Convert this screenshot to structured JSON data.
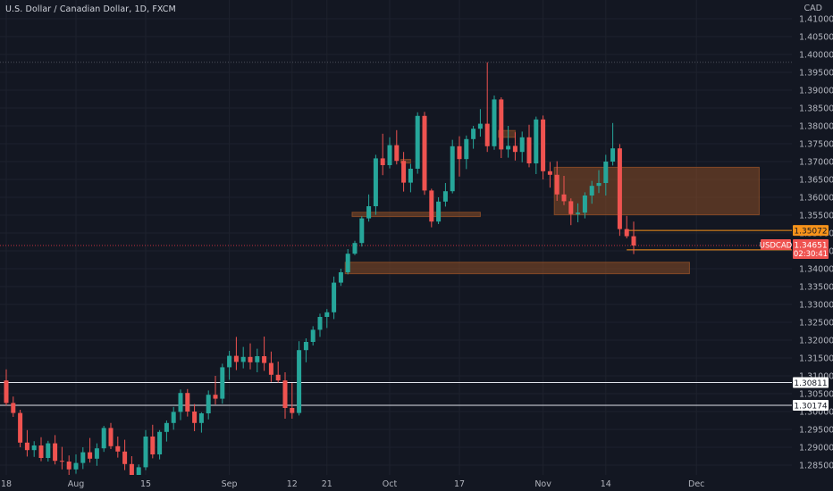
{
  "header": {
    "title": "U.S. Dollar / Canadian Dollar, 1D, FXCM",
    "currency": "CAD"
  },
  "colors": {
    "background": "#131722",
    "grid": "#1e222d",
    "up": "#26a69a",
    "down": "#ef5350",
    "zone": "#8b4c27",
    "orange_tag": "#f7931a",
    "white_line": "#e0e3eb"
  },
  "chart_data": {
    "type": "candlestick",
    "symbol": "USDCAD",
    "interval": "1D",
    "ylim": [
      1.2825,
      1.4125
    ],
    "y_ticks": [
      "1.41000",
      "1.40500",
      "1.40000",
      "1.39500",
      "1.39000",
      "1.38500",
      "1.38000",
      "1.37500",
      "1.37000",
      "1.36500",
      "1.36000",
      "1.35500",
      "1.35000",
      "1.34500",
      "1.34000",
      "1.33500",
      "1.33000",
      "1.32500",
      "1.32000",
      "1.31500",
      "1.31000",
      "1.30500",
      "1.30000",
      "1.29500",
      "1.29000",
      "1.28500"
    ],
    "x_ticks": [
      {
        "label": "18",
        "index": 0
      },
      {
        "label": "Aug",
        "index": 10
      },
      {
        "label": "15",
        "index": 20
      },
      {
        "label": "Sep",
        "index": 32
      },
      {
        "label": "12",
        "index": 41
      },
      {
        "label": "21",
        "index": 46
      },
      {
        "label": "Oct",
        "index": 55
      },
      {
        "label": "17",
        "index": 65
      },
      {
        "label": "Nov",
        "index": 77
      },
      {
        "label": "14",
        "index": 86
      },
      {
        "label": "Dec",
        "index": 99
      }
    ],
    "candles": [
      [
        1.3087,
        1.3118,
        1.3017,
        1.3024
      ],
      [
        1.3024,
        1.3042,
        1.2985,
        1.2996
      ],
      [
        1.2996,
        1.3005,
        1.29,
        1.2913
      ],
      [
        1.2913,
        1.2948,
        1.2874,
        1.2892
      ],
      [
        1.2892,
        1.2917,
        1.2873,
        1.2905
      ],
      [
        1.2905,
        1.2928,
        1.2861,
        1.287
      ],
      [
        1.287,
        1.2918,
        1.286,
        1.2911
      ],
      [
        1.2911,
        1.2934,
        1.2852,
        1.2862
      ],
      [
        1.2862,
        1.2901,
        1.2838,
        1.286
      ],
      [
        1.286,
        1.2877,
        1.28,
        1.2838
      ],
      [
        1.2838,
        1.288,
        1.2826,
        1.2856
      ],
      [
        1.2856,
        1.29,
        1.2839,
        1.2886
      ],
      [
        1.2886,
        1.2926,
        1.2857,
        1.2868
      ],
      [
        1.2868,
        1.2911,
        1.2848,
        1.2897
      ],
      [
        1.2897,
        1.296,
        1.2887,
        1.2954
      ],
      [
        1.2954,
        1.2968,
        1.2895,
        1.2903
      ],
      [
        1.2903,
        1.293,
        1.2871,
        1.2888
      ],
      [
        1.2888,
        1.2921,
        1.2836,
        1.2853
      ],
      [
        1.2853,
        1.2875,
        1.279,
        1.281
      ],
      [
        1.281,
        1.2852,
        1.2784,
        1.2844
      ],
      [
        1.2844,
        1.2948,
        1.2836,
        1.293
      ],
      [
        1.293,
        1.2963,
        1.2869,
        1.288
      ],
      [
        1.288,
        1.2948,
        1.2866,
        1.2943
      ],
      [
        1.2943,
        1.2975,
        1.2916,
        1.2968
      ],
      [
        1.2968,
        1.3013,
        1.2949,
        1.2999
      ],
      [
        1.2999,
        1.3062,
        1.2976,
        1.3052
      ],
      [
        1.3052,
        1.3063,
        1.2986,
        1.3
      ],
      [
        1.3,
        1.3021,
        1.2945,
        1.2968
      ],
      [
        1.2968,
        1.2998,
        1.2941,
        1.2995
      ],
      [
        1.2995,
        1.3059,
        1.2978,
        1.3047
      ],
      [
        1.3047,
        1.31,
        1.302,
        1.3036
      ],
      [
        1.3036,
        1.3134,
        1.3022,
        1.3124
      ],
      [
        1.3124,
        1.317,
        1.3089,
        1.3156
      ],
      [
        1.3156,
        1.3209,
        1.3116,
        1.3139
      ],
      [
        1.3139,
        1.3181,
        1.3121,
        1.3153
      ],
      [
        1.3153,
        1.3191,
        1.3118,
        1.3138
      ],
      [
        1.3138,
        1.3176,
        1.311,
        1.3155
      ],
      [
        1.3155,
        1.321,
        1.3114,
        1.3136
      ],
      [
        1.3136,
        1.3168,
        1.3083,
        1.3103
      ],
      [
        1.3103,
        1.314,
        1.3081,
        1.3087
      ],
      [
        1.3087,
        1.311,
        1.298,
        1.301
      ],
      [
        1.301,
        1.308,
        1.298,
        1.2996
      ],
      [
        1.2996,
        1.3197,
        1.2989,
        1.3172
      ],
      [
        1.3172,
        1.3205,
        1.3138,
        1.3195
      ],
      [
        1.3195,
        1.3239,
        1.3185,
        1.3229
      ],
      [
        1.3229,
        1.3274,
        1.3209,
        1.3265
      ],
      [
        1.3265,
        1.3287,
        1.3234,
        1.3278
      ],
      [
        1.3278,
        1.3378,
        1.3259,
        1.3361
      ],
      [
        1.3361,
        1.34,
        1.3352,
        1.339
      ],
      [
        1.339,
        1.3455,
        1.3384,
        1.3442
      ],
      [
        1.3442,
        1.3478,
        1.3438,
        1.3472
      ],
      [
        1.3472,
        1.3547,
        1.3462,
        1.3541
      ],
      [
        1.3541,
        1.3608,
        1.3532,
        1.3575
      ],
      [
        1.3575,
        1.3719,
        1.3551,
        1.3709
      ],
      [
        1.3709,
        1.3778,
        1.3662,
        1.369
      ],
      [
        1.369,
        1.3768,
        1.3681,
        1.3746
      ],
      [
        1.3746,
        1.3788,
        1.3692,
        1.3702
      ],
      [
        1.3702,
        1.3727,
        1.3616,
        1.3641
      ],
      [
        1.3641,
        1.3694,
        1.3614,
        1.368
      ],
      [
        1.368,
        1.3838,
        1.3666,
        1.3828
      ],
      [
        1.3828,
        1.3839,
        1.3607,
        1.3619
      ],
      [
        1.3619,
        1.3624,
        1.3516,
        1.3532
      ],
      [
        1.3532,
        1.36,
        1.3525,
        1.3588
      ],
      [
        1.3588,
        1.364,
        1.3574,
        1.3617
      ],
      [
        1.3617,
        1.3761,
        1.3611,
        1.3743
      ],
      [
        1.3743,
        1.3771,
        1.3658,
        1.3707
      ],
      [
        1.3707,
        1.3773,
        1.3679,
        1.3763
      ],
      [
        1.3763,
        1.38,
        1.3736,
        1.3792
      ],
      [
        1.3792,
        1.3847,
        1.377,
        1.3806
      ],
      [
        1.3806,
        1.3978,
        1.3727,
        1.3743
      ],
      [
        1.3743,
        1.3885,
        1.3733,
        1.3874
      ],
      [
        1.3874,
        1.388,
        1.371,
        1.3734
      ],
      [
        1.3734,
        1.38,
        1.3711,
        1.3744
      ],
      [
        1.3744,
        1.3782,
        1.3703,
        1.3727
      ],
      [
        1.3727,
        1.3784,
        1.3698,
        1.3768
      ],
      [
        1.3768,
        1.3803,
        1.3684,
        1.3695
      ],
      [
        1.3695,
        1.3826,
        1.3665,
        1.3818
      ],
      [
        1.3818,
        1.3829,
        1.365,
        1.3673
      ],
      [
        1.3673,
        1.3699,
        1.3627,
        1.3663
      ],
      [
        1.3663,
        1.3701,
        1.359,
        1.3608
      ],
      [
        1.3608,
        1.366,
        1.3578,
        1.3589
      ],
      [
        1.3589,
        1.3597,
        1.3522,
        1.3553
      ],
      [
        1.3553,
        1.3583,
        1.353,
        1.3557
      ],
      [
        1.3557,
        1.3614,
        1.3541,
        1.3605
      ],
      [
        1.3605,
        1.3646,
        1.3582,
        1.3632
      ],
      [
        1.3632,
        1.3676,
        1.3612,
        1.364
      ],
      [
        1.364,
        1.3719,
        1.3605,
        1.37
      ],
      [
        1.37,
        1.3808,
        1.3689,
        1.3737
      ],
      [
        1.3737,
        1.3749,
        1.3492,
        1.3511
      ],
      [
        1.3511,
        1.3548,
        1.3485,
        1.3491
      ],
      [
        1.3491,
        1.3532,
        1.3441,
        1.3465
      ]
    ],
    "horizontal_lines": [
      {
        "label": "1.35072",
        "value": 1.35072,
        "color": "orange",
        "from_index": 89
      },
      {
        "label": "1.34527",
        "value": 1.34527,
        "color": "orange",
        "from_index": 89
      },
      {
        "label": "1.30811",
        "value": 1.30811,
        "color": "white"
      },
      {
        "label": "1.30174",
        "value": 1.30174,
        "color": "white"
      }
    ],
    "dotted_lines": [
      1.3978,
      1.3465
    ],
    "zones": [
      {
        "y_low": 1.3386,
        "y_high": 1.3418,
        "from_index": 49,
        "to_index": 98
      },
      {
        "y_low": 1.3546,
        "y_high": 1.3558,
        "from_index": 50,
        "to_index": 68
      },
      {
        "y_low": 1.3551,
        "y_high": 1.3684,
        "from_index": 79,
        "to_index": 108
      },
      {
        "y_low": 1.3768,
        "y_high": 1.3787,
        "from_index": 71,
        "to_index": 73
      },
      {
        "y_low": 1.3696,
        "y_high": 1.3706,
        "from_index": 57,
        "to_index": 58
      }
    ],
    "current_price": {
      "symbol": "USDCAD",
      "price": "1.34651",
      "countdown": "02:30:41"
    },
    "last_index_for_current": 90
  }
}
